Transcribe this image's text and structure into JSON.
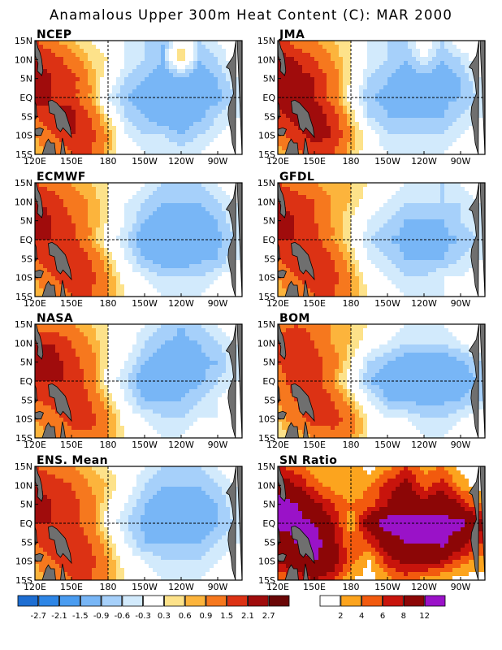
{
  "figure": {
    "title": "Anamalous Upper 300m Heat Content (C): MAR 2000"
  },
  "axes": {
    "x_ticks": [
      "120E",
      "150E",
      "180",
      "150W",
      "120W",
      "90W"
    ],
    "x_tick_values": [
      120,
      150,
      180,
      210,
      240,
      270
    ],
    "y_ticks": [
      "15N",
      "10N",
      "5N",
      "EQ",
      "5S",
      "10S",
      "15S"
    ],
    "y_tick_values": [
      15,
      10,
      5,
      0,
      -5,
      -10,
      -15
    ],
    "xlim": [
      120,
      290
    ],
    "ylim": [
      -15,
      15
    ],
    "reference_lines": {
      "equator_lat": 0,
      "dateline_lon": 180,
      "style": "dashed"
    }
  },
  "palettes": {
    "anomaly": {
      "labels": [
        "-2.7",
        "-2.1",
        "-1.5",
        "-0.9",
        "-0.6",
        "-0.3",
        "0.3",
        "0.6",
        "0.9",
        "1.5",
        "2.1",
        "2.7"
      ],
      "edges": [
        -2.7,
        -2.1,
        -1.5,
        -0.9,
        -0.6,
        -0.3,
        0.3,
        0.6,
        0.9,
        1.5,
        2.1,
        2.7
      ],
      "colors": [
        "#1e6ed2",
        "#2e86e6",
        "#4a9cf0",
        "#78b6f6",
        "#a6d0fa",
        "#d2eafc",
        "#ffffff",
        "#fde28a",
        "#fcb43c",
        "#f6781e",
        "#dc3214",
        "#a00c0c",
        "#6a0606"
      ]
    },
    "sn": {
      "labels": [
        "2",
        "4",
        "6",
        "8",
        "12"
      ],
      "edges": [
        2,
        4,
        6,
        8,
        12
      ],
      "colors": [
        "#ffffff",
        "#fca41e",
        "#f25a0e",
        "#c8140c",
        "#8c0606",
        "#9a12c8"
      ]
    }
  },
  "chart_data": [
    {
      "type": "heatmap",
      "name": "NCEP",
      "palette": "anomaly",
      "grid": {
        "lon": [
          120,
          135,
          150,
          165,
          180,
          195,
          210,
          225,
          240,
          255,
          270,
          285
        ],
        "lat": [
          15,
          10,
          5,
          0,
          -5,
          -10,
          -15
        ],
        "values": [
          [
            1.5,
            1.0,
            0.6,
            0.3,
            0.0,
            -0.3,
            -0.6,
            -0.9,
            0.3,
            -0.6,
            -0.3,
            0.0
          ],
          [
            2.1,
            1.8,
            1.2,
            0.6,
            0.3,
            -0.3,
            -0.6,
            -0.9,
            0.6,
            -0.9,
            -0.6,
            0.0
          ],
          [
            2.5,
            2.1,
            1.8,
            0.9,
            0.0,
            -0.6,
            -0.9,
            -1.2,
            -1.0,
            -1.2,
            -0.9,
            -0.3
          ],
          [
            2.4,
            2.1,
            1.8,
            0.9,
            -0.3,
            -0.9,
            -1.2,
            -1.3,
            -1.2,
            -1.2,
            -1.0,
            -0.6
          ],
          [
            1.5,
            2.1,
            2.4,
            1.5,
            0.3,
            -0.6,
            -0.9,
            -1.2,
            -1.2,
            -1.0,
            -0.6,
            -0.3
          ],
          [
            0.9,
            1.5,
            2.1,
            1.8,
            0.9,
            -0.3,
            -0.6,
            -0.6,
            -0.9,
            -0.6,
            -0.3,
            0.0
          ],
          [
            0.6,
            0.9,
            1.5,
            1.5,
            0.6,
            0.0,
            -0.3,
            -0.3,
            -0.3,
            -0.3,
            0.0,
            0.0
          ]
        ]
      }
    },
    {
      "type": "heatmap",
      "name": "JMA",
      "palette": "anomaly",
      "grid": {
        "lon": [
          120,
          135,
          150,
          165,
          180,
          195,
          210,
          225,
          240,
          255,
          270,
          285
        ],
        "lat": [
          15,
          10,
          5,
          0,
          -5,
          -10,
          -15
        ],
        "values": [
          [
            1.8,
            1.2,
            0.9,
            0.6,
            0.3,
            -0.3,
            -0.6,
            -0.6,
            0.0,
            -0.6,
            0.0,
            0.0
          ],
          [
            2.4,
            2.1,
            1.5,
            0.9,
            0.3,
            -0.3,
            -0.6,
            -0.9,
            -0.3,
            -0.9,
            -0.6,
            0.0
          ],
          [
            2.7,
            2.4,
            2.1,
            1.2,
            0.3,
            -0.6,
            -0.9,
            -1.2,
            -1.0,
            -1.2,
            -0.9,
            -0.3
          ],
          [
            2.7,
            2.4,
            2.1,
            1.2,
            0.0,
            -0.9,
            -1.0,
            -1.2,
            -1.2,
            -1.0,
            -0.9,
            -0.6
          ],
          [
            1.8,
            2.4,
            2.7,
            1.8,
            0.6,
            -0.6,
            -0.9,
            -0.9,
            -0.9,
            -0.9,
            -0.6,
            -0.3
          ],
          [
            1.2,
            1.8,
            2.4,
            2.1,
            0.9,
            0.0,
            -0.6,
            -0.6,
            -0.6,
            -0.6,
            -0.3,
            0.0
          ],
          [
            0.6,
            1.2,
            1.8,
            1.5,
            0.6,
            0.0,
            -0.3,
            -0.3,
            -0.3,
            -0.3,
            0.0,
            0.0
          ]
        ]
      }
    },
    {
      "type": "heatmap",
      "name": "ECMWF",
      "palette": "anomaly",
      "grid": {
        "lon": [
          120,
          135,
          150,
          165,
          180,
          195,
          210,
          225,
          240,
          255,
          270,
          285
        ],
        "lat": [
          15,
          10,
          5,
          0,
          -5,
          -10,
          -15
        ],
        "values": [
          [
            1.5,
            1.2,
            0.9,
            0.6,
            0.3,
            0.0,
            -0.3,
            -0.6,
            -0.6,
            -0.6,
            -0.3,
            0.0
          ],
          [
            2.1,
            1.8,
            1.2,
            0.9,
            0.3,
            -0.3,
            -0.6,
            -0.9,
            -0.9,
            -0.9,
            -0.6,
            -0.3
          ],
          [
            2.7,
            2.1,
            1.5,
            0.9,
            0.3,
            -0.3,
            -0.9,
            -1.2,
            -1.2,
            -1.2,
            -0.9,
            -0.3
          ],
          [
            2.1,
            2.1,
            1.8,
            0.9,
            0.0,
            -0.6,
            -1.2,
            -1.3,
            -1.3,
            -1.3,
            -1.0,
            -0.6
          ],
          [
            1.5,
            2.1,
            2.1,
            1.5,
            0.6,
            -0.3,
            -0.9,
            -1.2,
            -1.2,
            -1.0,
            -0.9,
            -0.3
          ],
          [
            0.9,
            1.5,
            2.1,
            1.8,
            0.9,
            0.0,
            -0.3,
            -0.6,
            -0.6,
            -0.6,
            -0.3,
            0.0
          ],
          [
            0.6,
            0.9,
            1.5,
            1.5,
            0.9,
            0.3,
            0.0,
            -0.3,
            -0.3,
            -0.3,
            0.0,
            0.0
          ]
        ]
      }
    },
    {
      "type": "heatmap",
      "name": "GFDL",
      "palette": "anomaly",
      "grid": {
        "lon": [
          120,
          135,
          150,
          165,
          180,
          195,
          210,
          225,
          240,
          255,
          270,
          285
        ],
        "lat": [
          15,
          10,
          5,
          0,
          -5,
          -10,
          -15
        ],
        "values": [
          [
            1.5,
            1.2,
            0.9,
            0.6,
            0.6,
            0.3,
            0.0,
            -0.3,
            -0.3,
            -0.6,
            -0.3,
            0.0
          ],
          [
            2.1,
            1.8,
            1.5,
            0.9,
            0.6,
            0.0,
            -0.3,
            -0.6,
            -0.6,
            -0.6,
            -0.6,
            -0.3
          ],
          [
            2.4,
            2.1,
            1.5,
            0.9,
            0.3,
            -0.3,
            -0.6,
            -0.9,
            -0.9,
            -0.9,
            -0.6,
            -0.3
          ],
          [
            2.1,
            2.1,
            1.8,
            0.9,
            0.3,
            -0.6,
            -0.9,
            -1.0,
            -1.0,
            -1.0,
            -0.9,
            -0.6
          ],
          [
            1.5,
            2.1,
            2.1,
            1.5,
            0.6,
            -0.3,
            -0.6,
            -0.9,
            -0.9,
            -0.9,
            -0.6,
            -0.3
          ],
          [
            0.9,
            1.5,
            2.1,
            1.8,
            0.9,
            0.0,
            -0.3,
            -0.6,
            -0.6,
            -0.3,
            -0.3,
            0.0
          ],
          [
            0.6,
            0.9,
            1.5,
            1.5,
            0.9,
            0.3,
            0.0,
            -0.3,
            -0.3,
            -0.3,
            0.0,
            0.0
          ]
        ]
      }
    },
    {
      "type": "heatmap",
      "name": "NASA",
      "palette": "anomaly",
      "grid": {
        "lon": [
          120,
          135,
          150,
          165,
          180,
          195,
          210,
          225,
          240,
          255,
          270,
          285
        ],
        "lat": [
          15,
          10,
          5,
          0,
          -5,
          -10,
          -15
        ],
        "values": [
          [
            1.2,
            1.2,
            0.9,
            0.6,
            0.3,
            0.0,
            -0.3,
            -0.6,
            -0.9,
            -0.6,
            -0.3,
            0.0
          ],
          [
            2.1,
            2.1,
            1.5,
            0.9,
            0.3,
            0.0,
            -0.6,
            -0.9,
            -1.0,
            -0.9,
            -0.6,
            -0.3
          ],
          [
            2.4,
            2.4,
            1.8,
            1.2,
            0.3,
            -0.3,
            -0.9,
            -1.2,
            -1.2,
            -1.0,
            -0.9,
            -0.3
          ],
          [
            2.1,
            2.1,
            2.1,
            1.2,
            0.0,
            -0.6,
            -1.2,
            -1.3,
            -1.2,
            -1.0,
            -0.6,
            -0.3
          ],
          [
            1.5,
            1.8,
            2.1,
            1.5,
            0.6,
            -0.3,
            -0.9,
            -0.9,
            -0.9,
            -0.6,
            -0.3,
            0.0
          ],
          [
            0.9,
            1.2,
            1.8,
            1.8,
            1.0,
            0.0,
            -0.3,
            -0.6,
            -0.6,
            -0.3,
            -0.3,
            0.0
          ],
          [
            0.6,
            0.9,
            1.2,
            1.2,
            0.9,
            0.3,
            0.0,
            -0.3,
            -0.3,
            0.0,
            0.0,
            0.0
          ]
        ]
      }
    },
    {
      "type": "heatmap",
      "name": "BOM",
      "palette": "anomaly",
      "grid": {
        "lon": [
          120,
          135,
          150,
          165,
          180,
          195,
          210,
          225,
          240,
          255,
          270,
          285
        ],
        "lat": [
          15,
          10,
          5,
          0,
          -5,
          -10,
          -15
        ],
        "values": [
          [
            1.2,
            1.5,
            1.2,
            0.9,
            0.6,
            0.3,
            0.0,
            -0.3,
            -0.3,
            -0.3,
            0.0,
            0.0
          ],
          [
            1.8,
            2.1,
            1.5,
            0.9,
            0.6,
            0.0,
            -0.3,
            -0.6,
            -0.6,
            -0.6,
            -0.3,
            0.0
          ],
          [
            1.5,
            2.1,
            1.8,
            1.2,
            0.3,
            -0.6,
            -0.9,
            -1.2,
            -1.2,
            -1.2,
            -1.0,
            -0.6
          ],
          [
            1.2,
            1.8,
            1.8,
            0.9,
            0.0,
            -0.9,
            -1.2,
            -1.3,
            -1.3,
            -1.3,
            -1.2,
            -0.9
          ],
          [
            0.9,
            1.5,
            2.1,
            1.5,
            0.6,
            -0.3,
            -0.9,
            -1.0,
            -1.0,
            -1.0,
            -0.9,
            -0.6
          ],
          [
            0.6,
            1.2,
            1.8,
            1.8,
            1.2,
            0.3,
            -0.3,
            -0.3,
            -0.6,
            -0.6,
            -0.3,
            0.0
          ],
          [
            0.3,
            0.6,
            0.9,
            1.2,
            0.9,
            0.3,
            0.0,
            0.0,
            -0.3,
            -0.3,
            0.0,
            0.0
          ]
        ]
      }
    },
    {
      "type": "heatmap",
      "name": "ENS. Mean",
      "palette": "anomaly",
      "grid": {
        "lon": [
          120,
          135,
          150,
          165,
          180,
          195,
          210,
          225,
          240,
          255,
          270,
          285
        ],
        "lat": [
          15,
          10,
          5,
          0,
          -5,
          -10,
          -15
        ],
        "values": [
          [
            1.5,
            1.2,
            0.9,
            0.6,
            0.3,
            0.0,
            -0.3,
            -0.6,
            -0.6,
            -0.6,
            -0.3,
            0.0
          ],
          [
            2.1,
            1.8,
            1.5,
            0.9,
            0.6,
            0.0,
            -0.6,
            -0.9,
            -0.9,
            -0.9,
            -0.6,
            -0.3
          ],
          [
            2.4,
            2.1,
            1.8,
            1.2,
            0.3,
            -0.3,
            -0.9,
            -1.2,
            -1.2,
            -1.2,
            -0.9,
            -0.3
          ],
          [
            2.1,
            2.1,
            1.8,
            1.2,
            0.0,
            -0.6,
            -1.0,
            -1.2,
            -1.2,
            -1.2,
            -0.9,
            -0.6
          ],
          [
            1.5,
            2.1,
            2.1,
            1.5,
            0.6,
            -0.3,
            -0.9,
            -0.9,
            -0.9,
            -0.9,
            -0.6,
            -0.3
          ],
          [
            0.9,
            1.5,
            2.1,
            1.8,
            0.9,
            0.0,
            -0.3,
            -0.6,
            -0.6,
            -0.6,
            -0.3,
            0.0
          ],
          [
            0.6,
            0.9,
            1.5,
            1.5,
            0.9,
            0.3,
            0.0,
            -0.3,
            -0.3,
            -0.3,
            0.0,
            0.0
          ]
        ]
      }
    },
    {
      "type": "heatmap",
      "name": "SN Ratio",
      "palette": "sn",
      "grid": {
        "lon": [
          120,
          135,
          150,
          165,
          180,
          195,
          210,
          225,
          240,
          255,
          270,
          285
        ],
        "lat": [
          15,
          10,
          5,
          0,
          -5,
          -10,
          -15
        ],
        "values": [
          [
            6,
            5,
            3,
            2,
            3,
            1,
            3,
            6,
            3,
            4,
            1,
            2
          ],
          [
            10,
            8,
            5,
            3,
            2,
            4,
            7,
            9,
            5,
            7,
            3,
            1
          ],
          [
            14,
            12,
            9,
            6,
            4,
            5,
            8,
            10,
            9,
            11,
            8,
            4
          ],
          [
            13,
            13,
            12,
            8,
            3,
            10,
            14,
            14,
            14,
            13,
            13,
            9
          ],
          [
            10,
            12,
            14,
            9,
            4,
            6,
            10,
            12,
            12,
            13,
            10,
            6
          ],
          [
            8,
            10,
            12,
            10,
            5,
            2,
            7,
            9,
            9,
            8,
            5,
            3
          ],
          [
            4,
            6,
            8,
            6,
            2,
            1,
            3,
            5,
            3,
            2,
            1,
            1
          ]
        ]
      }
    }
  ]
}
